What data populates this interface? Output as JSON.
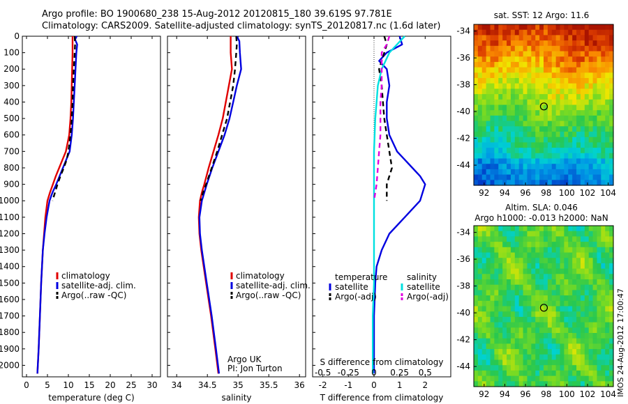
{
  "title": {
    "line1": "Argo profile: BO 1900680_238 15-Aug-2012 20120815_180 39.619S 97.781E",
    "line2": "Climatology: CARS2009. Satellite-adjusted climatology: synTS_20120817.nc (1.6d later)"
  },
  "side_label": "IMOS 24-Aug-2012 17:00:47",
  "colors": {
    "red": "#e00000",
    "blue": "#0000e0",
    "black": "#000000",
    "cyan": "#00e0e0",
    "magenta": "#e000e0"
  },
  "chart_data": [
    {
      "id": "temperature",
      "type": "line",
      "xlabel": "temperature (deg C)",
      "xlim": [
        -1,
        32
      ],
      "ylim": [
        2070,
        0
      ],
      "xticks": [
        0,
        5,
        10,
        15,
        20,
        25,
        30
      ],
      "yticks": [
        0,
        100,
        200,
        300,
        400,
        500,
        600,
        700,
        800,
        900,
        1000,
        1100,
        1200,
        1300,
        1400,
        1500,
        1600,
        1700,
        1800,
        1900,
        2000
      ],
      "legend": [
        "climatology",
        "satellite-adj. clim.",
        "Argo(..raw -QC)"
      ],
      "series": [
        {
          "name": "climatology",
          "color": "red",
          "dash": false,
          "depth": [
            0,
            100,
            200,
            300,
            400,
            500,
            600,
            700,
            750,
            800,
            850,
            900,
            950,
            1000,
            1100,
            1200,
            1300,
            1500,
            1700,
            1900,
            2050
          ],
          "values": [
            11.0,
            11.0,
            10.9,
            10.8,
            10.7,
            10.5,
            10.2,
            9.4,
            8.6,
            7.8,
            7.0,
            6.3,
            5.6,
            5.0,
            4.5,
            4.2,
            3.9,
            3.5,
            3.2,
            2.9,
            2.6
          ]
        },
        {
          "name": "satellite-adj. clim.",
          "color": "blue",
          "dash": false,
          "depth": [
            0,
            20,
            50,
            100,
            200,
            300,
            400,
            500,
            600,
            700,
            750,
            800,
            850,
            900,
            950,
            1000,
            1100,
            1200,
            1300,
            1500,
            1700,
            1900,
            2050
          ],
          "values": [
            12.0,
            11.6,
            12.1,
            11.9,
            11.7,
            11.5,
            11.3,
            11.1,
            10.8,
            10.3,
            9.5,
            8.7,
            7.9,
            7.1,
            6.2,
            5.5,
            4.8,
            4.3,
            3.9,
            3.5,
            3.2,
            2.9,
            2.6
          ]
        },
        {
          "name": "Argo(..raw -QC)",
          "color": "black",
          "dash": true,
          "depth": [
            0,
            50,
            100,
            200,
            300,
            400,
            500,
            600,
            700,
            750,
            800,
            850,
            900,
            950,
            1000
          ],
          "values": [
            11.5,
            11.6,
            11.5,
            11.3,
            11.1,
            11.0,
            10.8,
            10.5,
            10.0,
            9.6,
            8.9,
            8.1,
            7.4,
            6.8,
            6.2
          ]
        }
      ]
    },
    {
      "id": "salinity",
      "type": "line",
      "xlabel": "salinity",
      "xlim": [
        33.85,
        36.1
      ],
      "ylim": [
        2070,
        0
      ],
      "xticks": [
        34,
        34.5,
        35,
        35.5,
        36
      ],
      "xticklabels": [
        "34",
        "34.5",
        "35",
        "35.5",
        "36"
      ],
      "legend": [
        "climatology",
        "satellite-adj. clim.",
        "Argo(..raw -QC)"
      ],
      "annotation": [
        "Argo UK",
        "PI: Jon Turton"
      ],
      "series": [
        {
          "name": "climatology",
          "color": "red",
          "dash": false,
          "depth": [
            0,
            100,
            200,
            300,
            400,
            500,
            600,
            700,
            800,
            900,
            950,
            1000,
            1100,
            1200,
            1300,
            1500,
            1700,
            1900,
            2050
          ],
          "values": [
            34.88,
            34.88,
            34.9,
            34.85,
            34.8,
            34.75,
            34.68,
            34.6,
            34.52,
            34.45,
            34.41,
            34.38,
            34.36,
            34.37,
            34.4,
            34.48,
            34.56,
            34.63,
            34.68
          ]
        },
        {
          "name": "satellite-adj. clim.",
          "color": "blue",
          "dash": false,
          "depth": [
            0,
            30,
            100,
            200,
            300,
            400,
            500,
            600,
            700,
            800,
            900,
            950,
            1000,
            1100,
            1200,
            1300,
            1500,
            1700,
            1900,
            2050
          ],
          "values": [
            34.98,
            35.02,
            35.03,
            35.05,
            34.98,
            34.92,
            34.86,
            34.78,
            34.68,
            34.58,
            34.49,
            34.45,
            34.41,
            34.37,
            34.38,
            34.41,
            34.49,
            34.57,
            34.64,
            34.69
          ]
        },
        {
          "name": "Argo(..raw -QC)",
          "color": "black",
          "dash": true,
          "depth": [
            0,
            50,
            100,
            200,
            300,
            400,
            500,
            600,
            700,
            800,
            900,
            950,
            1000
          ],
          "values": [
            34.97,
            34.98,
            34.97,
            34.95,
            34.92,
            34.87,
            34.82,
            34.74,
            34.66,
            34.57,
            34.48,
            34.43,
            34.39
          ]
        }
      ]
    },
    {
      "id": "difference",
      "type": "line",
      "xlabel": "T difference from climatology",
      "xlabel_top": "S difference from climatology",
      "xlim": [
        -2.4,
        3.0
      ],
      "ylim": [
        2070,
        0
      ],
      "xticks": [
        -2,
        -1,
        0,
        1,
        2
      ],
      "xticklabels_top": [
        "-0.5",
        "-0.25",
        "0",
        "0.25",
        "0.5"
      ],
      "xticks_top": [
        -2,
        -1,
        0,
        1,
        2
      ],
      "legend_headers": [
        "temperature",
        "salinity"
      ],
      "legend": [
        "satellite",
        "Argo(-adj)",
        "satellite",
        "Argo(-adj)"
      ],
      "series": [
        {
          "name": "T satellite",
          "color": "blue",
          "dash": false,
          "depth": [
            0,
            50,
            100,
            150,
            200,
            300,
            400,
            500,
            600,
            700,
            750,
            800,
            850,
            900,
            1000,
            1100,
            1200,
            1300,
            1400,
            1500,
            1700,
            1900,
            2050
          ],
          "values": [
            1.0,
            1.1,
            0.5,
            0.2,
            0.5,
            0.6,
            0.5,
            0.5,
            0.6,
            0.9,
            1.2,
            1.5,
            1.8,
            2.0,
            1.8,
            1.2,
            0.6,
            0.3,
            0.1,
            0.05,
            0.0,
            0.0,
            0.0
          ]
        },
        {
          "name": "T Argo(-adj)",
          "color": "black",
          "dash": true,
          "depth": [
            0,
            50,
            100,
            200,
            300,
            400,
            500,
            600,
            700,
            800,
            900,
            1000
          ],
          "values": [
            0.4,
            0.5,
            0.4,
            0.2,
            0.3,
            0.35,
            0.4,
            0.5,
            0.6,
            0.7,
            0.5,
            0.5
          ]
        },
        {
          "name": "S satellite",
          "color": "cyan",
          "dash": false,
          "depth": [
            0,
            50,
            100,
            200,
            300,
            400,
            500,
            700,
            900,
            1100,
            1300,
            1500,
            1700,
            1900,
            2050
          ],
          "values": [
            1.2,
            0.9,
            0.6,
            0.3,
            0.15,
            0.1,
            0.05,
            0.0,
            0.0,
            0.0,
            0.0,
            0.0,
            -0.05,
            -0.05,
            -0.05
          ]
        },
        {
          "name": "S Argo(-adj)",
          "color": "magenta",
          "dash": true,
          "depth": [
            0,
            50,
            100,
            200,
            300,
            400,
            500,
            600,
            700,
            800,
            900,
            1000
          ],
          "values": [
            0.6,
            0.5,
            0.3,
            0.3,
            0.3,
            0.25,
            0.25,
            0.25,
            0.2,
            0.15,
            0.1,
            0.0
          ]
        }
      ]
    },
    {
      "id": "sst_map",
      "type": "heatmap",
      "title": "sat. SST: 12 Argo: 11.6",
      "xlim": [
        91,
        104.5
      ],
      "ylim": [
        -45.5,
        -33.5
      ],
      "xticks": [
        92,
        94,
        96,
        98,
        100,
        102,
        104
      ],
      "yticks": [
        -34,
        -36,
        -38,
        -40,
        -42,
        -44
      ],
      "marker": [
        97.78,
        -39.62
      ]
    },
    {
      "id": "sla_map",
      "type": "heatmap",
      "title_line1": "Altim. SLA: 0.046",
      "title_line2": "Argo h1000: -0.013 h2000: NaN",
      "xlim": [
        91,
        104.5
      ],
      "ylim": [
        -45.5,
        -33.5
      ],
      "xticks": [
        92,
        94,
        96,
        98,
        100,
        102,
        104
      ],
      "yticks": [
        -34,
        -36,
        -38,
        -40,
        -42,
        -44
      ],
      "marker": [
        97.78,
        -39.62
      ]
    }
  ]
}
